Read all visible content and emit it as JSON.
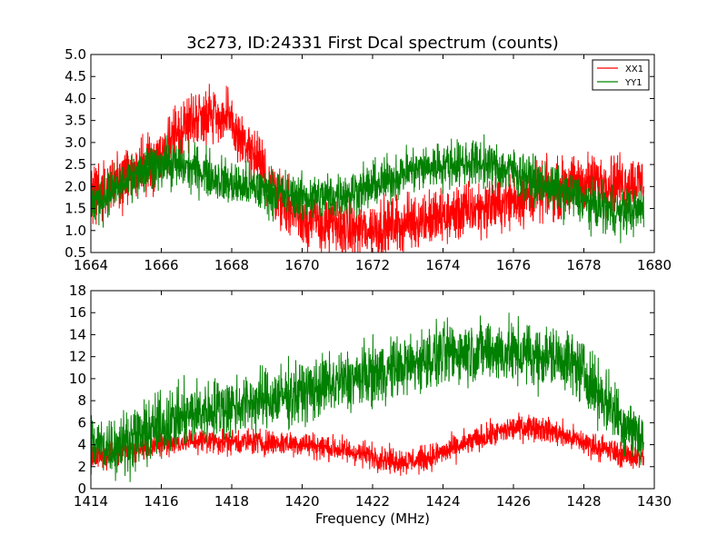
{
  "figure": {
    "title": "3c273, ID:24331 First Dcal spectrum (counts)",
    "xlabel": "Frequency (MHz)"
  },
  "chart_data": [
    {
      "type": "line",
      "title": "3c273, ID:24331 First Dcal spectrum (counts)",
      "xlabel": "",
      "ylabel": "",
      "xlim": [
        1664,
        1680
      ],
      "ylim": [
        0.5,
        5.0
      ],
      "x_ticks": [
        1664,
        1666,
        1668,
        1670,
        1672,
        1674,
        1676,
        1678,
        1680
      ],
      "y_ticks": [
        0.5,
        1.0,
        1.5,
        2.0,
        2.5,
        3.0,
        3.5,
        4.0,
        4.5,
        5.0
      ],
      "x_tick_labels": [
        "1664",
        "1666",
        "1668",
        "1670",
        "1672",
        "1674",
        "1676",
        "1678",
        "1680"
      ],
      "y_tick_labels": [
        "0.5",
        "1.0",
        "1.5",
        "2.0",
        "2.5",
        "3.0",
        "3.5",
        "4.0",
        "4.5",
        "5.0"
      ],
      "legend": {
        "position": "top-right",
        "entries": [
          "XX1",
          "YY1"
        ]
      },
      "series": [
        {
          "name": "XX1",
          "color": "#ff0000",
          "noise": 0.55,
          "x": [
            1664.0,
            1665.0,
            1666.0,
            1666.5,
            1667.0,
            1667.5,
            1668.0,
            1668.5,
            1669.0,
            1669.5,
            1670.0,
            1670.5,
            1671.0,
            1671.5,
            1672.0,
            1672.5,
            1673.0,
            1673.5,
            1674.0,
            1675.0,
            1676.0,
            1676.5,
            1677.0,
            1677.5,
            1678.0,
            1679.0,
            1679.7
          ],
          "y": [
            1.8,
            2.2,
            2.7,
            3.2,
            3.6,
            3.7,
            3.4,
            2.8,
            2.2,
            1.6,
            1.3,
            1.15,
            1.05,
            1.0,
            1.05,
            1.1,
            1.2,
            1.25,
            1.3,
            1.5,
            1.7,
            1.8,
            1.9,
            2.0,
            2.1,
            2.1,
            2.1
          ]
        },
        {
          "name": "YY1",
          "color": "#008000",
          "noise": 0.45,
          "x": [
            1664.0,
            1665.0,
            1666.0,
            1667.0,
            1668.0,
            1669.0,
            1670.0,
            1671.0,
            1672.0,
            1673.0,
            1674.0,
            1675.0,
            1676.0,
            1677.0,
            1678.0,
            1679.0,
            1679.7
          ],
          "y": [
            1.6,
            2.1,
            2.55,
            2.4,
            2.05,
            1.9,
            1.75,
            1.8,
            2.0,
            2.35,
            2.5,
            2.55,
            2.35,
            2.0,
            1.65,
            1.4,
            1.5
          ]
        }
      ]
    },
    {
      "type": "line",
      "title": "",
      "xlabel": "Frequency (MHz)",
      "ylabel": "",
      "xlim": [
        1414,
        1430
      ],
      "ylim": [
        0,
        18
      ],
      "x_ticks": [
        1414,
        1416,
        1418,
        1420,
        1422,
        1424,
        1426,
        1428,
        1430
      ],
      "y_ticks": [
        0,
        2,
        4,
        6,
        8,
        10,
        12,
        14,
        16,
        18
      ],
      "x_tick_labels": [
        "1414",
        "1416",
        "1418",
        "1420",
        "1422",
        "1424",
        "1426",
        "1428",
        "1430"
      ],
      "y_tick_labels": [
        "0",
        "2",
        "4",
        "6",
        "8",
        "10",
        "12",
        "14",
        "16",
        "18"
      ],
      "series": [
        {
          "name": "XX1",
          "color": "#ff0000",
          "noise": 1.0,
          "x": [
            1414.0,
            1415.0,
            1416.0,
            1417.0,
            1418.0,
            1419.0,
            1420.0,
            1421.0,
            1422.0,
            1422.5,
            1423.0,
            1423.5,
            1424.0,
            1425.0,
            1426.0,
            1426.5,
            1427.0,
            1428.0,
            1429.0,
            1429.7
          ],
          "y": [
            2.9,
            3.4,
            4.1,
            4.4,
            4.3,
            4.2,
            4.1,
            3.6,
            3.0,
            2.6,
            2.5,
            2.7,
            3.3,
            4.5,
            5.5,
            5.7,
            5.3,
            4.2,
            3.2,
            2.8
          ]
        },
        {
          "name": "YY1",
          "color": "#008000",
          "noise": 2.4,
          "x": [
            1414.0,
            1414.5,
            1415.0,
            1415.5,
            1416.0,
            1417.0,
            1418.0,
            1419.0,
            1420.0,
            1421.0,
            1422.0,
            1423.0,
            1424.0,
            1425.0,
            1426.0,
            1427.0,
            1427.5,
            1428.0,
            1428.5,
            1429.0,
            1429.7
          ],
          "y": [
            4.0,
            3.9,
            4.3,
            5.0,
            5.8,
            6.9,
            7.5,
            8.1,
            8.7,
            9.6,
            10.4,
            11.2,
            12.2,
            12.6,
            12.3,
            12.0,
            11.8,
            10.5,
            8.5,
            6.5,
            4.5
          ]
        }
      ]
    }
  ]
}
